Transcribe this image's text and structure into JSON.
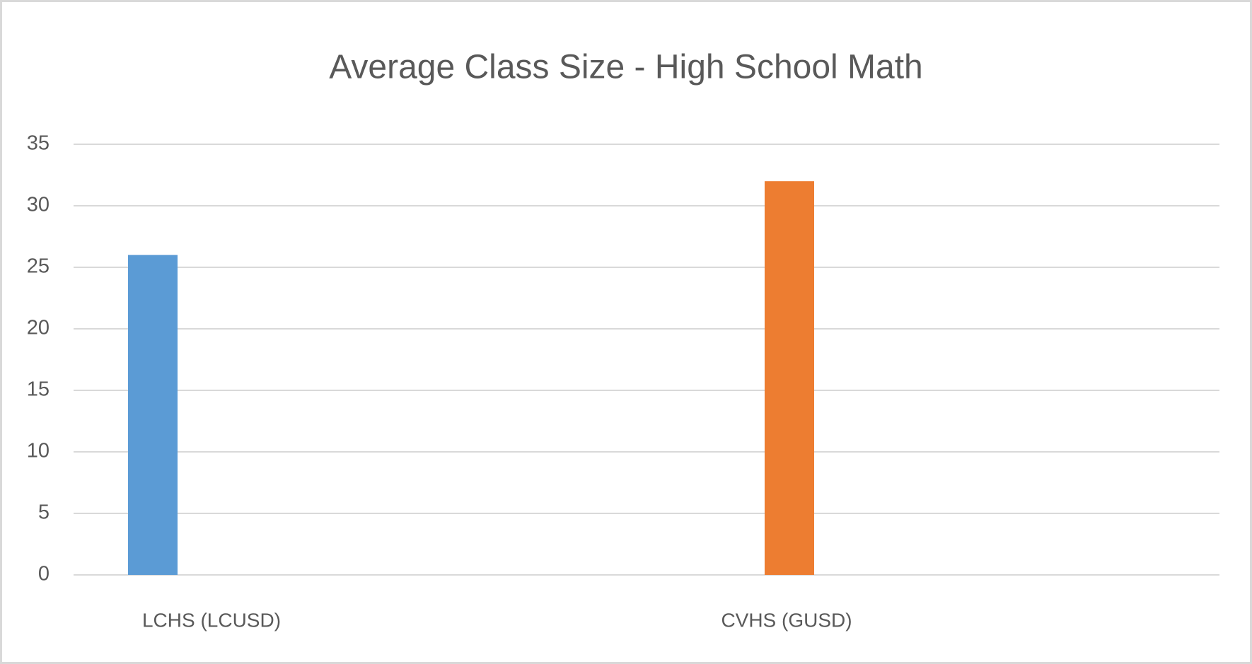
{
  "chart_data": {
    "type": "bar",
    "title": "Average Class Size - High School Math",
    "categories": [
      "LCHS (LCUSD)",
      "CVHS (GUSD)"
    ],
    "values": [
      26,
      32
    ],
    "colors": [
      "#5b9bd5",
      "#ed7d31"
    ],
    "ylim": [
      0,
      35
    ],
    "yticks": [
      0,
      5,
      10,
      15,
      20,
      25,
      30,
      35
    ],
    "grid": true
  }
}
